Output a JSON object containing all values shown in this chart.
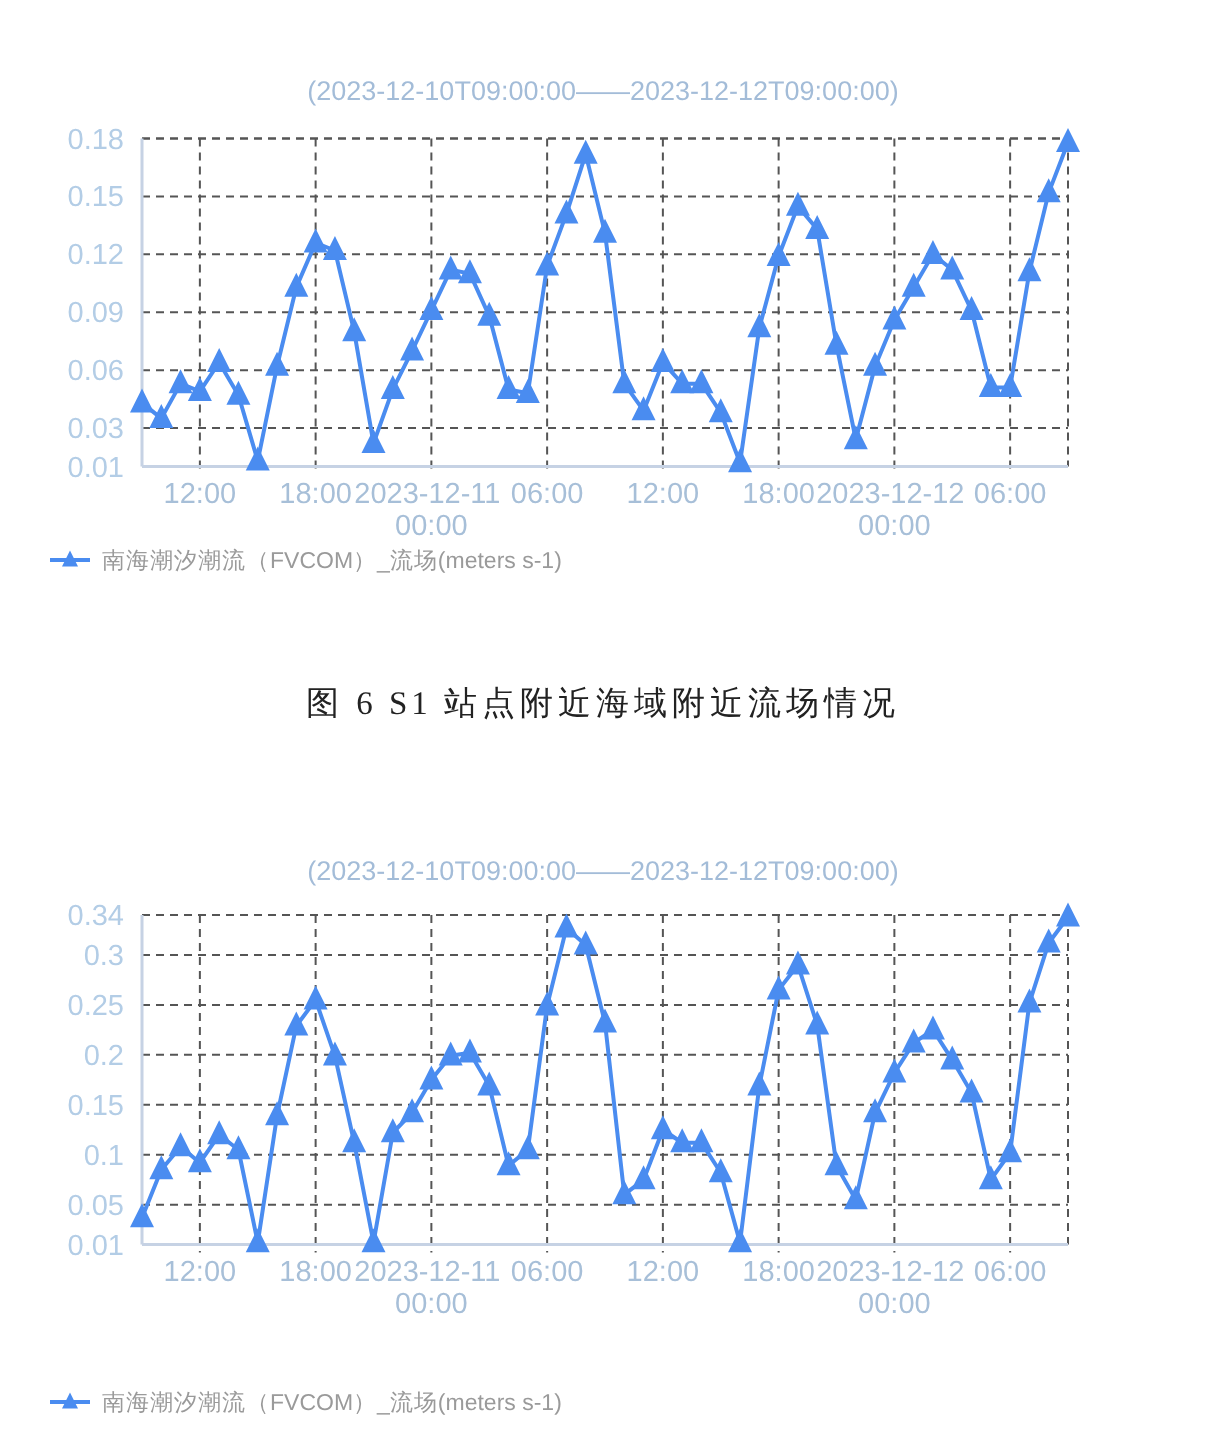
{
  "chart_data": [
    {
      "type": "line",
      "subtitle": "(2023-12-10T09:00:00——2023-12-12T09:00:00)",
      "x": [
        "2023-12-10T09:00",
        "2023-12-10T10:00",
        "2023-12-10T11:00",
        "2023-12-10T12:00",
        "2023-12-10T13:00",
        "2023-12-10T14:00",
        "2023-12-10T15:00",
        "2023-12-10T16:00",
        "2023-12-10T17:00",
        "2023-12-10T18:00",
        "2023-12-10T19:00",
        "2023-12-10T20:00",
        "2023-12-10T21:00",
        "2023-12-10T22:00",
        "2023-12-10T23:00",
        "2023-12-11T00:00",
        "2023-12-11T01:00",
        "2023-12-11T02:00",
        "2023-12-11T03:00",
        "2023-12-11T04:00",
        "2023-12-11T05:00",
        "2023-12-11T06:00",
        "2023-12-11T07:00",
        "2023-12-11T08:00",
        "2023-12-11T09:00",
        "2023-12-11T10:00",
        "2023-12-11T11:00",
        "2023-12-11T12:00",
        "2023-12-11T13:00",
        "2023-12-11T14:00",
        "2023-12-11T15:00",
        "2023-12-11T16:00",
        "2023-12-11T17:00",
        "2023-12-11T18:00",
        "2023-12-11T19:00",
        "2023-12-11T20:00",
        "2023-12-11T21:00",
        "2023-12-11T22:00",
        "2023-12-11T23:00",
        "2023-12-12T00:00",
        "2023-12-12T01:00",
        "2023-12-12T02:00",
        "2023-12-12T03:00",
        "2023-12-12T04:00",
        "2023-12-12T05:00",
        "2023-12-12T06:00",
        "2023-12-12T07:00",
        "2023-12-12T08:00",
        "2023-12-12T09:00"
      ],
      "xlim": [
        "2023-12-10T09:00",
        "2023-12-12T09:00"
      ],
      "xticks": [
        {
          "value": "2023-12-10T12:00",
          "label": "12:00"
        },
        {
          "value": "2023-12-10T18:00",
          "label": "18:00"
        },
        {
          "value": "2023-12-11T00:00",
          "label": "2023-12-11 00:00"
        },
        {
          "value": "2023-12-11T06:00",
          "label": "06:00"
        },
        {
          "value": "2023-12-11T12:00",
          "label": "12:00"
        },
        {
          "value": "2023-12-11T18:00",
          "label": "18:00"
        },
        {
          "value": "2023-12-12T00:00",
          "label": "2023-12-12 00:00"
        },
        {
          "value": "2023-12-12T06:00",
          "label": "06:00"
        }
      ],
      "ylim": [
        0.01,
        0.18
      ],
      "yticks": [
        0.01,
        0.03,
        0.06,
        0.09,
        0.12,
        0.15,
        0.18
      ],
      "series": [
        {
          "name": "南海潮汐潮流（FVCOM）_流场(meters s-1)",
          "color": "#4a8cf0",
          "values": [
            0.043,
            0.035,
            0.053,
            0.049,
            0.064,
            0.047,
            0.013,
            0.062,
            0.103,
            0.126,
            0.122,
            0.08,
            0.022,
            0.05,
            0.07,
            0.091,
            0.112,
            0.11,
            0.088,
            0.05,
            0.048,
            0.114,
            0.141,
            0.172,
            0.131,
            0.053,
            0.039,
            0.064,
            0.053,
            0.053,
            0.038,
            0.012,
            0.082,
            0.119,
            0.145,
            0.133,
            0.073,
            0.024,
            0.062,
            0.086,
            0.103,
            0.12,
            0.112,
            0.091,
            0.051,
            0.051,
            0.111,
            0.152,
            0.178
          ]
        }
      ],
      "grid": true,
      "legend": "bottom left",
      "marker": "triangle",
      "annotations": [
        "图 6 S1 站点附近海域附近流场情况"
      ]
    },
    {
      "type": "line",
      "subtitle": "(2023-12-10T09:00:00——2023-12-12T09:00:00)",
      "x": [
        "2023-12-10T09:00",
        "2023-12-10T10:00",
        "2023-12-10T11:00",
        "2023-12-10T12:00",
        "2023-12-10T13:00",
        "2023-12-10T14:00",
        "2023-12-10T15:00",
        "2023-12-10T16:00",
        "2023-12-10T17:00",
        "2023-12-10T18:00",
        "2023-12-10T19:00",
        "2023-12-10T20:00",
        "2023-12-10T21:00",
        "2023-12-10T22:00",
        "2023-12-10T23:00",
        "2023-12-11T00:00",
        "2023-12-11T01:00",
        "2023-12-11T02:00",
        "2023-12-11T03:00",
        "2023-12-11T04:00",
        "2023-12-11T05:00",
        "2023-12-11T06:00",
        "2023-12-11T07:00",
        "2023-12-11T08:00",
        "2023-12-11T09:00",
        "2023-12-11T10:00",
        "2023-12-11T11:00",
        "2023-12-11T12:00",
        "2023-12-11T13:00",
        "2023-12-11T14:00",
        "2023-12-11T15:00",
        "2023-12-11T16:00",
        "2023-12-11T17:00",
        "2023-12-11T18:00",
        "2023-12-11T19:00",
        "2023-12-11T20:00",
        "2023-12-11T21:00",
        "2023-12-11T22:00",
        "2023-12-11T23:00",
        "2023-12-12T00:00",
        "2023-12-12T01:00",
        "2023-12-12T02:00",
        "2023-12-12T03:00",
        "2023-12-12T04:00",
        "2023-12-12T05:00",
        "2023-12-12T06:00",
        "2023-12-12T07:00",
        "2023-12-12T08:00",
        "2023-12-12T09:00"
      ],
      "xlim": [
        "2023-12-10T09:00",
        "2023-12-12T09:00"
      ],
      "xticks": [
        {
          "value": "2023-12-10T12:00",
          "label": "12:00"
        },
        {
          "value": "2023-12-10T18:00",
          "label": "18:00"
        },
        {
          "value": "2023-12-11T00:00",
          "label": "2023-12-11 00:00"
        },
        {
          "value": "2023-12-11T06:00",
          "label": "06:00"
        },
        {
          "value": "2023-12-11T12:00",
          "label": "12:00"
        },
        {
          "value": "2023-12-11T18:00",
          "label": "18:00"
        },
        {
          "value": "2023-12-12T00:00",
          "label": "2023-12-12 00:00"
        },
        {
          "value": "2023-12-12T06:00",
          "label": "06:00"
        }
      ],
      "ylim": [
        0.01,
        0.34
      ],
      "yticks": [
        0.01,
        0.05,
        0.1,
        0.15,
        0.2,
        0.25,
        0.3,
        0.34
      ],
      "series": [
        {
          "name": "南海潮汐潮流（FVCOM）_流场(meters s-1)",
          "color": "#4a8cf0",
          "values": [
            0.037,
            0.085,
            0.108,
            0.092,
            0.12,
            0.105,
            0.012,
            0.139,
            0.229,
            0.255,
            0.199,
            0.112,
            0.012,
            0.122,
            0.142,
            0.175,
            0.199,
            0.202,
            0.169,
            0.089,
            0.105,
            0.249,
            0.327,
            0.31,
            0.232,
            0.06,
            0.075,
            0.125,
            0.112,
            0.112,
            0.082,
            0.012,
            0.169,
            0.265,
            0.29,
            0.23,
            0.089,
            0.055,
            0.142,
            0.182,
            0.212,
            0.225,
            0.195,
            0.162,
            0.075,
            0.102,
            0.252,
            0.312,
            0.338
          ]
        }
      ],
      "grid": true,
      "legend": "bottom left",
      "marker": "triangle"
    }
  ]
}
